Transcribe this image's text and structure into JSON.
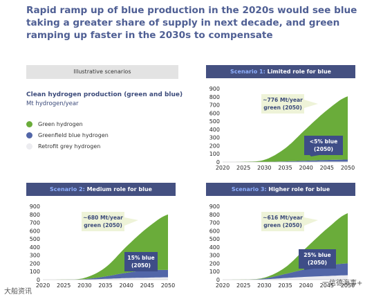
{
  "title": "Rapid ramp up of blue production in the 2020s would see blue taking a greater share of supply in next decade, and green ramping up faster in the 2030s to compensate",
  "illustrative_label": "Illustrative scenarios",
  "legend": {
    "title": "Clean hydrogen production (green and blue)",
    "subtitle": "Mt hydrogen/year",
    "items": [
      {
        "label": "Green hydrogen",
        "color": "#6aac3a"
      },
      {
        "label": "Greenfield blue hydrogen",
        "color": "#5266a8"
      },
      {
        "label": "Retrofit grey hydrogen",
        "color": "#ececf0"
      }
    ]
  },
  "panels": [
    {
      "prefix": "Scenario 1:",
      "suffix": "Limited role for blue"
    },
    {
      "prefix": "Scenario 2:",
      "suffix": "Medium role for blue"
    },
    {
      "prefix": "Scenario 3:",
      "suffix": "Higher role for blue"
    }
  ],
  "watermarks": {
    "left": "大船资讯",
    "right": "一信德海事+"
  },
  "chart_data": [
    {
      "type": "area",
      "title": "Scenario 1: Limited role for blue",
      "x": [
        2020,
        2025,
        2030,
        2035,
        2040,
        2045,
        2050
      ],
      "series": [
        {
          "name": "Retrofit grey hydrogen",
          "values": [
            0,
            0,
            0,
            2,
            4,
            5,
            5
          ]
        },
        {
          "name": "Greenfield blue hydrogen",
          "values": [
            0,
            0,
            1,
            6,
            12,
            20,
            25
          ]
        },
        {
          "name": "Green hydrogen",
          "values": [
            0,
            3,
            25,
            160,
            390,
            610,
            776
          ]
        }
      ],
      "ylim": [
        0,
        900
      ],
      "yticks": [
        0,
        100,
        200,
        300,
        400,
        500,
        600,
        700,
        800,
        900
      ],
      "annotations": [
        {
          "text": "~776 Mt/year green (2050)"
        },
        {
          "text": "<5% blue (2050)"
        }
      ]
    },
    {
      "type": "area",
      "title": "Scenario 2: Medium role for blue",
      "x": [
        2020,
        2025,
        2030,
        2035,
        2040,
        2045,
        2050
      ],
      "series": [
        {
          "name": "Retrofit grey hydrogen",
          "values": [
            0,
            0,
            2,
            10,
            20,
            25,
            30
          ]
        },
        {
          "name": "Greenfield blue hydrogen",
          "values": [
            0,
            0,
            5,
            30,
            65,
            90,
            90
          ]
        },
        {
          "name": "Green hydrogen",
          "values": [
            0,
            2,
            15,
            110,
            320,
            520,
            680
          ]
        }
      ],
      "ylim": [
        0,
        900
      ],
      "yticks": [
        0,
        100,
        200,
        300,
        400,
        500,
        600,
        700,
        800,
        900
      ],
      "annotations": [
        {
          "text": "~680 Mt/year green (2050)"
        },
        {
          "text": "15% blue (2050)"
        }
      ]
    },
    {
      "type": "area",
      "title": "Scenario 3: Higher role for blue",
      "x": [
        2020,
        2025,
        2030,
        2035,
        2040,
        2045,
        2050
      ],
      "series": [
        {
          "name": "Retrofit grey hydrogen",
          "values": [
            0,
            0,
            5,
            20,
            35,
            45,
            55
          ]
        },
        {
          "name": "Greenfield blue hydrogen",
          "values": [
            0,
            0,
            10,
            50,
            95,
            130,
            145
          ]
        },
        {
          "name": "Green hydrogen",
          "values": [
            0,
            2,
            10,
            80,
            260,
            450,
            616
          ]
        }
      ],
      "ylim": [
        0,
        900
      ],
      "yticks": [
        0,
        100,
        200,
        300,
        400,
        500,
        600,
        700,
        800,
        900
      ],
      "annotations": [
        {
          "text": "~616 Mt/year green (2050)"
        },
        {
          "text": "25% blue (2050)"
        }
      ]
    }
  ]
}
